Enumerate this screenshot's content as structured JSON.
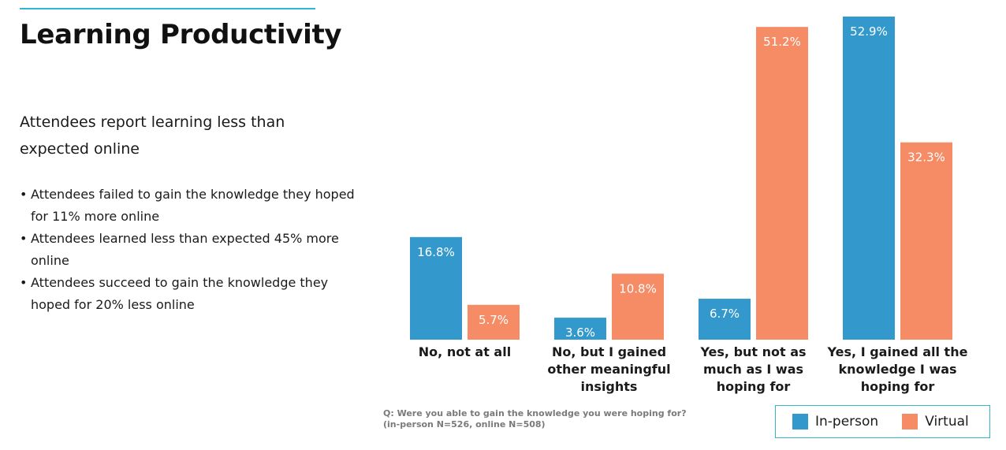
{
  "header": {
    "title": "Learning Productivity"
  },
  "text": {
    "subtitle": "Attendees report learning less than expected online",
    "bullets": [
      "Attendees failed to gain the knowledge they hoped for 11% more online",
      "Attendees learned less than expected 45% more online",
      "Attendees succeed to gain the knowledge they hoped for 20% less online"
    ]
  },
  "colors": {
    "accent_rule": "#2fb6d6",
    "inperson": "#3399cc",
    "virtual": "#f58c66",
    "legend_border": "#34b6c5"
  },
  "chart_data": {
    "type": "bar",
    "title": "",
    "categories": [
      [
        "No, not at all"
      ],
      [
        "No, but I gained",
        "other meaningful",
        "insights"
      ],
      [
        "Yes, but not as",
        "much as I was",
        "hoping for"
      ],
      [
        "Yes, I gained all the",
        "knowledge I was",
        "hoping for"
      ]
    ],
    "series": [
      {
        "name": "In-person",
        "values": [
          16.8,
          3.6,
          6.7,
          52.9
        ],
        "labels": [
          "16.8%",
          "3.6%",
          "6.7%",
          "52.9%"
        ]
      },
      {
        "name": "Virtual",
        "values": [
          5.7,
          10.8,
          51.2,
          32.3
        ],
        "labels": [
          "5.7%",
          "10.8%",
          "51.2%",
          "32.3%"
        ]
      }
    ],
    "ylim": [
      0,
      52.9
    ],
    "grid": false,
    "legend_position": "bottom-right",
    "note": [
      "Q:  Were you able to gain the knowledge you were hoping for?",
      "(in-person N=526, online N=508)"
    ]
  }
}
